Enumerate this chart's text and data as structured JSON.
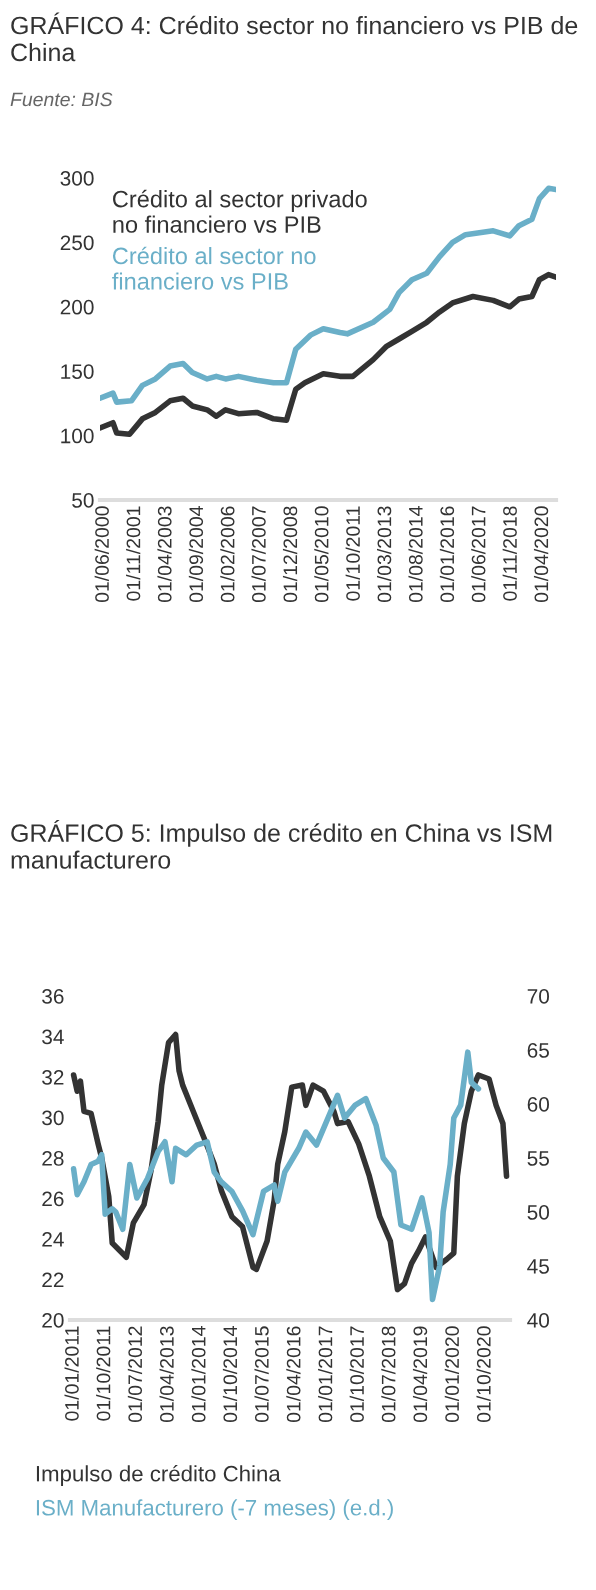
{
  "chart_data": [
    {
      "type": "line",
      "title": "GRÁFICO 4: Crédito sector no financiero vs PIB de China",
      "subtitle": "Fuente: BIS",
      "legend": "top left",
      "grid": false,
      "xlim": [
        "2000-04",
        "2020-11"
      ],
      "ylim": [
        50,
        300
      ],
      "yticks": [
        50,
        100,
        150,
        200,
        250,
        300
      ],
      "xticks": [
        {
          "value": "2000-06",
          "label": "01/06/2000"
        },
        {
          "value": "2001-11",
          "label": "01/11/2001"
        },
        {
          "value": "2003-04",
          "label": "01/04/2003"
        },
        {
          "value": "2004-09",
          "label": "01/09/2004"
        },
        {
          "value": "2006-02",
          "label": "01/02/2006"
        },
        {
          "value": "2007-07",
          "label": "01/07/2007"
        },
        {
          "value": "2008-12",
          "label": "01/12/2008"
        },
        {
          "value": "2010-05",
          "label": "01/05/2010"
        },
        {
          "value": "2011-10",
          "label": "01/10/2011"
        },
        {
          "value": "2013-03",
          "label": "01/03/2013"
        },
        {
          "value": "2014-08",
          "label": "01/08/2014"
        },
        {
          "value": "2016-01",
          "label": "01/01/2016"
        },
        {
          "value": "2017-06",
          "label": "01/06/2017"
        },
        {
          "value": "2018-11",
          "label": "01/11/2018"
        },
        {
          "value": "2020-04",
          "label": "01/04/2020"
        }
      ],
      "series": [
        {
          "name": "Crédito al sector privado no financiero vs PIB",
          "color": "#333333",
          "x": [
            "2000-04",
            "2000-11",
            "2001-01",
            "2001-08",
            "2002-03",
            "2002-10",
            "2003-06",
            "2004-01",
            "2004-06",
            "2005-02",
            "2005-07",
            "2005-12",
            "2006-07",
            "2007-05",
            "2008-02",
            "2008-09",
            "2009-02",
            "2009-07",
            "2010-05",
            "2011-02",
            "2011-09",
            "2012-08",
            "2013-03",
            "2013-10",
            "2014-05",
            "2015-01",
            "2015-08",
            "2016-03",
            "2017-02",
            "2018-01",
            "2018-10",
            "2019-03",
            "2019-10",
            "2020-02",
            "2020-07",
            "2020-11"
          ],
          "values": [
            106,
            110,
            102,
            101,
            113,
            118,
            127,
            129,
            123,
            120,
            115,
            120,
            117,
            118,
            113,
            112,
            136,
            141,
            148,
            146,
            146,
            159,
            169,
            175,
            181,
            188,
            196,
            203,
            208,
            205,
            200,
            206,
            208,
            221,
            225,
            223
          ]
        },
        {
          "name": "Crédito al sector no financiero vs PIB",
          "color": "#6aafc8",
          "x": [
            "2000-04",
            "2000-11",
            "2001-01",
            "2001-09",
            "2002-03",
            "2002-10",
            "2003-06",
            "2004-01",
            "2004-06",
            "2005-02",
            "2005-07",
            "2005-12",
            "2006-07",
            "2007-05",
            "2008-02",
            "2008-09",
            "2009-02",
            "2009-10",
            "2010-05",
            "2011-02",
            "2011-06",
            "2012-08",
            "2013-05",
            "2013-10",
            "2014-05",
            "2015-01",
            "2015-08",
            "2016-03",
            "2016-10",
            "2018-01",
            "2018-10",
            "2019-03",
            "2019-10",
            "2020-02",
            "2020-07",
            "2020-11"
          ],
          "values": [
            129,
            133,
            126,
            127,
            139,
            144,
            154,
            156,
            149,
            144,
            146,
            144,
            146,
            143,
            141,
            141,
            167,
            178,
            183,
            180,
            179,
            188,
            198,
            211,
            221,
            226,
            239,
            250,
            256,
            259,
            255,
            263,
            268,
            284,
            292,
            291
          ]
        }
      ]
    },
    {
      "type": "line",
      "title": "GRÁFICO 5: Impulso de crédito en China vs ISM manufacturero",
      "legend": "bottom",
      "grid": false,
      "xlim": [
        "2010-12",
        "2021-05"
      ],
      "ylim": [
        20,
        36
      ],
      "yticks": [
        20,
        22,
        24,
        26,
        28,
        30,
        32,
        34,
        36
      ],
      "y2lim": [
        40,
        70
      ],
      "y2ticks": [
        40,
        45,
        50,
        55,
        60,
        65,
        70
      ],
      "xticks": [
        {
          "value": "2011-01",
          "label": "01/01/2011"
        },
        {
          "value": "2011-10",
          "label": "01/10/2011"
        },
        {
          "value": "2012-07",
          "label": "01/07/2012"
        },
        {
          "value": "2013-04",
          "label": "01/04/2013"
        },
        {
          "value": "2014-01",
          "label": "01/01/2014"
        },
        {
          "value": "2014-10",
          "label": "01/10/2014"
        },
        {
          "value": "2015-07",
          "label": "01/07/2015"
        },
        {
          "value": "2016-04",
          "label": "01/04/2016"
        },
        {
          "value": "2017-01",
          "label": "01/01/2017"
        },
        {
          "value": "2017-10",
          "label": "01/10/2017"
        },
        {
          "value": "2018-07",
          "label": "01/07/2018"
        },
        {
          "value": "2019-04",
          "label": "01/04/2019"
        },
        {
          "value": "2020-01",
          "label": "01/01/2020"
        },
        {
          "value": "2020-10",
          "label": "01/10/2020"
        }
      ],
      "series": [
        {
          "name": "Impulso de crédito China",
          "color": "#333333",
          "x": [
            "2011-01",
            "2011-02",
            "2011-03",
            "2011-04",
            "2011-06",
            "2011-08",
            "2011-09",
            "2011-11",
            "2011-12",
            "2012-04",
            "2012-06",
            "2012-09",
            "2012-11",
            "2013-01",
            "2013-02",
            "2013-04",
            "2013-06",
            "2013-07",
            "2013-08",
            "2013-11",
            "2014-02",
            "2014-05",
            "2014-07",
            "2014-10",
            "2015-01",
            "2015-04",
            "2015-05",
            "2015-08",
            "2015-10",
            "2015-11",
            "2016-01",
            "2016-03",
            "2016-06",
            "2016-07",
            "2016-09",
            "2016-12",
            "2017-03",
            "2017-04",
            "2017-07",
            "2017-10",
            "2018-01",
            "2018-04",
            "2018-07",
            "2018-09",
            "2018-11",
            "2019-01",
            "2019-03",
            "2019-05",
            "2019-08",
            "2019-11",
            "2020-01",
            "2020-02",
            "2020-04",
            "2020-06",
            "2020-08",
            "2020-11",
            "2021-01",
            "2021-03",
            "2021-04"
          ],
          "values": [
            32.1,
            31.3,
            31.8,
            30.3,
            30.2,
            28.7,
            28.0,
            26.1,
            23.8,
            23.1,
            24.8,
            25.7,
            27.4,
            29.8,
            31.6,
            33.7,
            34.1,
            32.3,
            31.6,
            30.3,
            29.0,
            27.7,
            26.4,
            25.1,
            24.6,
            22.6,
            22.5,
            23.9,
            25.9,
            27.7,
            29.3,
            31.5,
            31.6,
            30.6,
            31.6,
            31.3,
            30.3,
            29.7,
            29.8,
            28.7,
            27.1,
            25.1,
            23.9,
            21.5,
            21.8,
            22.8,
            23.4,
            24.1,
            22.6,
            23.0,
            23.3,
            27.1,
            29.7,
            31.3,
            32.1,
            31.9,
            30.6,
            29.7,
            27.1
          ]
        },
        {
          "name": "ISM Manufacturero (-7 meses) (e.d.)",
          "color": "#6aafc8",
          "axis": "y2",
          "x": [
            "2011-01",
            "2011-02",
            "2011-04",
            "2011-06",
            "2011-08",
            "2011-09",
            "2011-10",
            "2011-12",
            "2012-01",
            "2012-03",
            "2012-05",
            "2012-07",
            "2012-10",
            "2013-01",
            "2013-03",
            "2013-05",
            "2013-06",
            "2013-09",
            "2013-12",
            "2014-03",
            "2014-05",
            "2014-07",
            "2014-10",
            "2015-01",
            "2015-04",
            "2015-07",
            "2015-10",
            "2015-11",
            "2016-01",
            "2016-05",
            "2016-07",
            "2016-10",
            "2017-02",
            "2017-04",
            "2017-06",
            "2017-09",
            "2017-12",
            "2018-03",
            "2018-05",
            "2018-08",
            "2018-10",
            "2019-01",
            "2019-04",
            "2019-06",
            "2019-07",
            "2019-09",
            "2019-10",
            "2019-12",
            "2020-01",
            "2020-03",
            "2020-05",
            "2020-06",
            "2020-07",
            "2020-08"
          ],
          "values": [
            54.0,
            51.6,
            52.8,
            54.4,
            54.7,
            55.3,
            49.8,
            50.3,
            50.0,
            48.4,
            54.4,
            51.3,
            53.1,
            55.6,
            56.5,
            52.8,
            55.9,
            55.3,
            56.2,
            56.5,
            53.7,
            52.8,
            51.9,
            50.1,
            47.9,
            51.9,
            52.5,
            51.0,
            53.7,
            55.9,
            57.4,
            56.2,
            59.3,
            60.8,
            58.7,
            59.9,
            60.5,
            58.0,
            55.0,
            53.7,
            48.8,
            48.4,
            51.3,
            48.1,
            41.9,
            45.0,
            50.0,
            54.4,
            58.7,
            59.9,
            64.8,
            62.0,
            61.7,
            61.4
          ]
        }
      ]
    }
  ]
}
